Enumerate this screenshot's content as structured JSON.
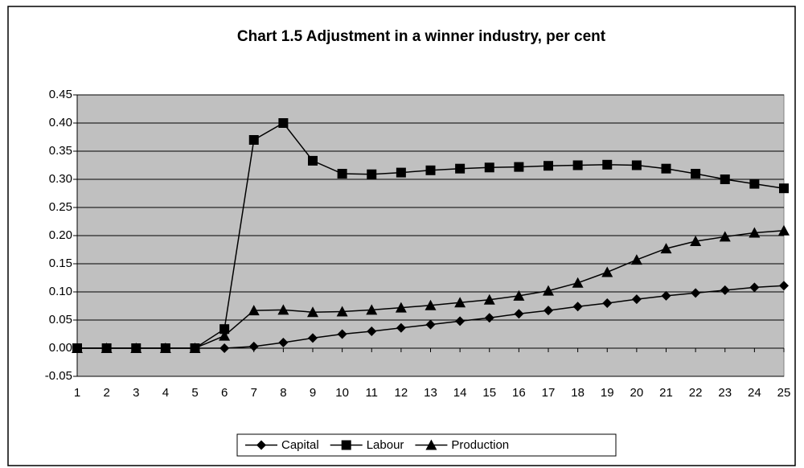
{
  "chart_data": {
    "type": "line",
    "title": "Chart 1.5 Adjustment in a winner industry, per cent",
    "categories": [
      "1",
      "2",
      "3",
      "4",
      "5",
      "6",
      "7",
      "8",
      "9",
      "10",
      "11",
      "12",
      "13",
      "14",
      "15",
      "16",
      "17",
      "18",
      "19",
      "20",
      "21",
      "22",
      "23",
      "24",
      "25"
    ],
    "series": [
      {
        "name": "Capital",
        "color": "#000000",
        "marker": "diamond",
        "values": [
          0,
          0,
          0,
          0,
          0,
          0.0,
          0.003,
          0.01,
          0.018,
          0.025,
          0.03,
          0.036,
          0.042,
          0.048,
          0.054,
          0.061,
          0.067,
          0.074,
          0.08,
          0.087,
          0.093,
          0.098,
          0.103,
          0.108,
          0.111
        ]
      },
      {
        "name": "Labour",
        "color": "#000000",
        "marker": "square",
        "values": [
          0,
          0,
          0,
          0,
          0,
          0.034,
          0.37,
          0.4,
          0.333,
          0.31,
          0.309,
          0.312,
          0.316,
          0.319,
          0.321,
          0.322,
          0.324,
          0.325,
          0.326,
          0.325,
          0.319,
          0.31,
          0.3,
          0.292,
          0.284
        ]
      },
      {
        "name": "Production",
        "color": "#000000",
        "marker": "triangle",
        "values": [
          0,
          0,
          0,
          0,
          0,
          0.022,
          0.067,
          0.068,
          0.064,
          0.065,
          0.068,
          0.072,
          0.076,
          0.081,
          0.086,
          0.093,
          0.102,
          0.116,
          0.135,
          0.157,
          0.177,
          0.19,
          0.198,
          0.205,
          0.209
        ]
      }
    ],
    "ylim": [
      -0.05,
      0.45
    ],
    "yticks": [
      {
        "value": -0.05,
        "label": "-0.05"
      },
      {
        "value": 0,
        "label": "0.00"
      },
      {
        "value": 0.05,
        "label": "0.05"
      },
      {
        "value": 0.1,
        "label": "0.10"
      },
      {
        "value": 0.15,
        "label": "0.15"
      },
      {
        "value": 0.2,
        "label": "0.20"
      },
      {
        "value": 0.25,
        "label": "0.25"
      },
      {
        "value": 0.3,
        "label": "0.30"
      },
      {
        "value": 0.35,
        "label": "0.35"
      },
      {
        "value": 0.4,
        "label": "0.40"
      },
      {
        "value": 0.45,
        "label": "0.45"
      }
    ],
    "grid": true,
    "plot_background": "#c0c0c0",
    "legend": "bottom"
  }
}
